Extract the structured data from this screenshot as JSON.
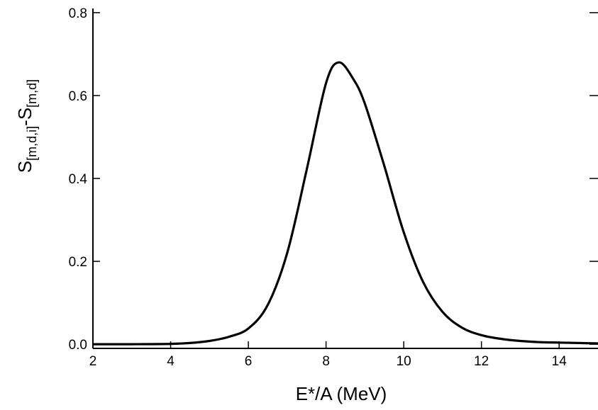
{
  "chart_data": {
    "type": "line",
    "title": "",
    "xlabel": "E*/A (MeV)",
    "ylabel": {
      "S1": "S",
      "sub1": "[m,d,i]",
      "dash": "-",
      "S2": "S",
      "sub2": "[m,d]"
    },
    "xlim": [
      2,
      15
    ],
    "ylim": [
      -0.01,
      0.81
    ],
    "xticks": [
      2,
      4,
      6,
      8,
      10,
      12,
      14
    ],
    "xtick_labels": [
      "2",
      "4",
      "6",
      "8",
      "10",
      "12",
      "14"
    ],
    "yticks": [
      0.0,
      0.2,
      0.4,
      0.6,
      0.8
    ],
    "ytick_labels": [
      "0.0",
      "0.2",
      "0.4",
      "0.6",
      "0.8"
    ],
    "grid": false,
    "legend": "none",
    "series": [
      {
        "color": "#000000",
        "x": [
          2.0,
          3.0,
          4.0,
          4.5,
          5.0,
          5.5,
          6.0,
          6.5,
          7.0,
          7.5,
          8.0,
          8.33,
          8.7,
          9.0,
          9.5,
          10.0,
          10.5,
          11.0,
          11.5,
          12.0,
          12.5,
          13.0,
          13.5,
          14.0,
          14.5,
          15.0
        ],
        "y": [
          0.0,
          0.0,
          0.001,
          0.003,
          0.008,
          0.018,
          0.038,
          0.095,
          0.22,
          0.42,
          0.63,
          0.68,
          0.64,
          0.58,
          0.43,
          0.27,
          0.15,
          0.078,
          0.04,
          0.022,
          0.013,
          0.008,
          0.005,
          0.004,
          0.003,
          0.002
        ]
      }
    ]
  }
}
